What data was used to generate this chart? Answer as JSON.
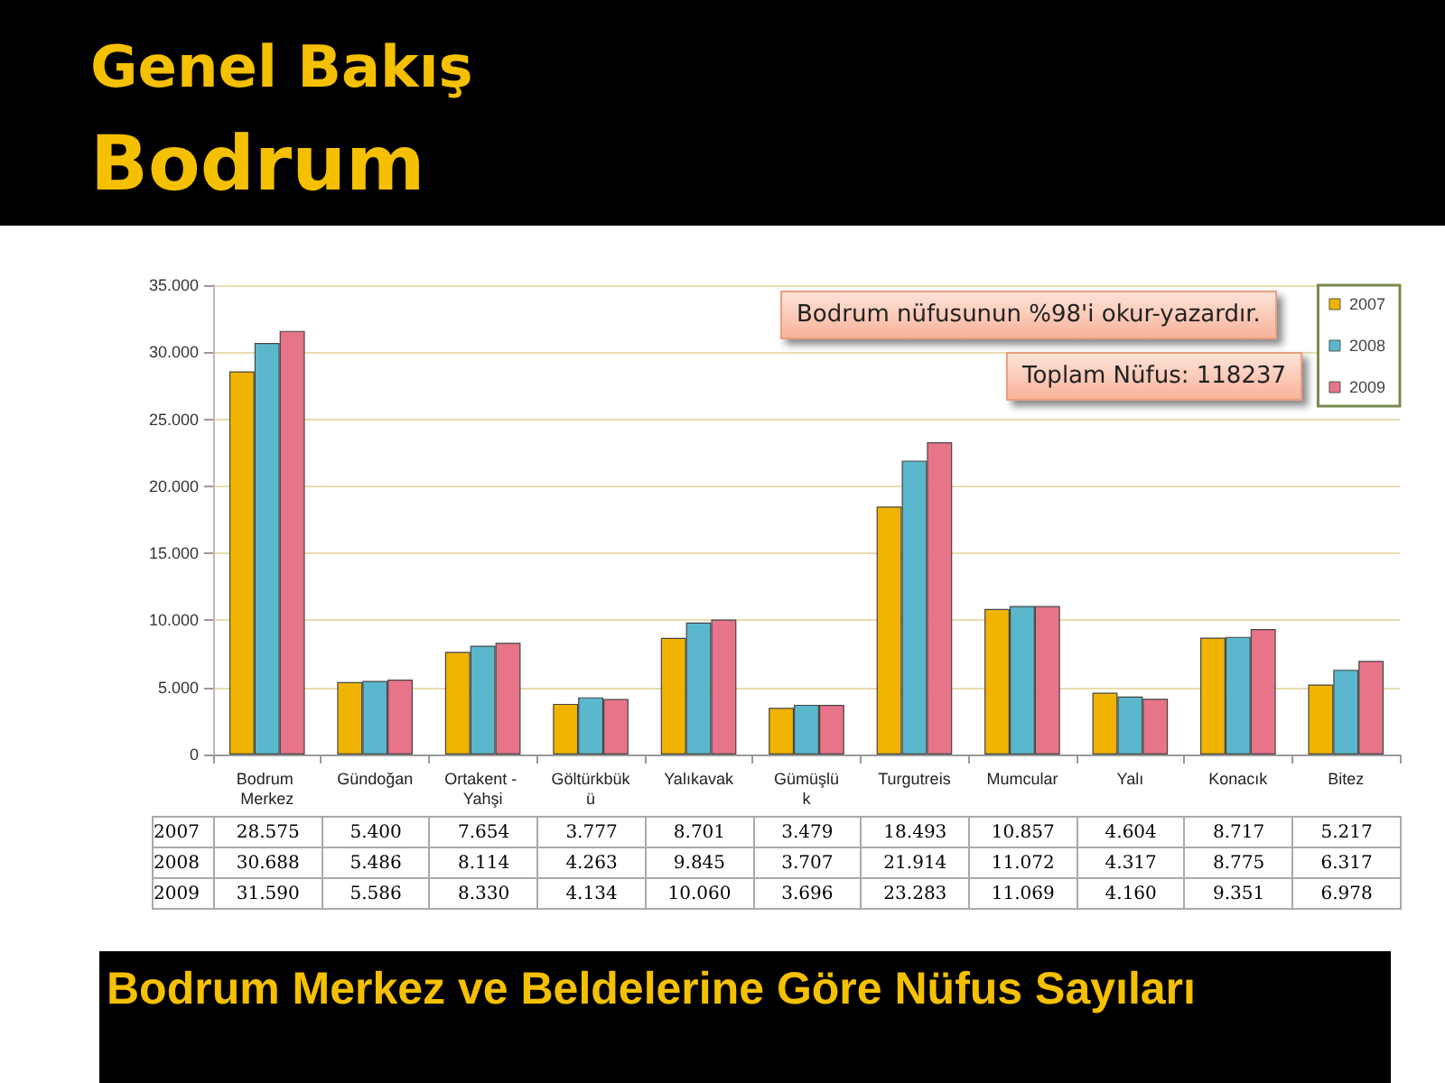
{
  "chart_data": {
    "type": "bar",
    "title": "Genel Bakış",
    "subtitle": "Bodrum",
    "annotations": [
      "Bodrum nüfusunun %98'i okur-yazardır.",
      "Toplam Nüfus: 118237",
      "Bodrum Merkez ve Beldelerine Göre Nüfus Sayıları"
    ],
    "categories": [
      "Bodrum Merkez",
      "Gündoğan",
      "Ortakent - Yahşi",
      "Göltürkbükü",
      "Yalıkavak",
      "Gümüşlük",
      "Turgutreis",
      "Mumcular",
      "Yalı",
      "Konacık",
      "Bitez"
    ],
    "series": [
      {
        "name": "2007",
        "color": "#f0b400",
        "values": [
          28575,
          5400,
          7654,
          3777,
          8701,
          3479,
          18493,
          10857,
          4604,
          8717,
          5217
        ],
        "value_labels": [
          "28.575",
          "5.400",
          "7.654",
          "3.777",
          "8.701",
          "3.479",
          "18.493",
          "10.857",
          "4.604",
          "8.717",
          "5.217"
        ]
      },
      {
        "name": "2008",
        "color": "#5bb8cc",
        "values": [
          30688,
          5486,
          8114,
          4263,
          9845,
          3707,
          21914,
          11072,
          4317,
          8775,
          6317
        ],
        "value_labels": [
          "30.688",
          "5.486",
          "8.114",
          "4.263",
          "9.845",
          "3.707",
          "21.914",
          "11.072",
          "4.317",
          "8.775",
          "6.317"
        ]
      },
      {
        "name": "2009",
        "color": "#e8748a",
        "values": [
          31590,
          5586,
          8330,
          4134,
          10060,
          3696,
          23283,
          11069,
          4160,
          9351,
          6978
        ],
        "value_labels": [
          "31.590",
          "5.586",
          "8.330",
          "4.134",
          "10.060",
          "3.696",
          "23.283",
          "11.069",
          "4.160",
          "9.351",
          "6.978"
        ]
      }
    ],
    "ylim": [
      0,
      35000
    ],
    "yticks": [
      {
        "value": 0,
        "label": "0"
      },
      {
        "value": 5000,
        "label": "5.000"
      },
      {
        "value": 10000,
        "label": "10.000"
      },
      {
        "value": 15000,
        "label": "15.000"
      },
      {
        "value": 20000,
        "label": "20.000"
      },
      {
        "value": 25000,
        "label": "25.000"
      },
      {
        "value": 30000,
        "label": "30.000"
      },
      {
        "value": 35000,
        "label": "35.000"
      }
    ],
    "grid": "y",
    "legend": "top right"
  }
}
